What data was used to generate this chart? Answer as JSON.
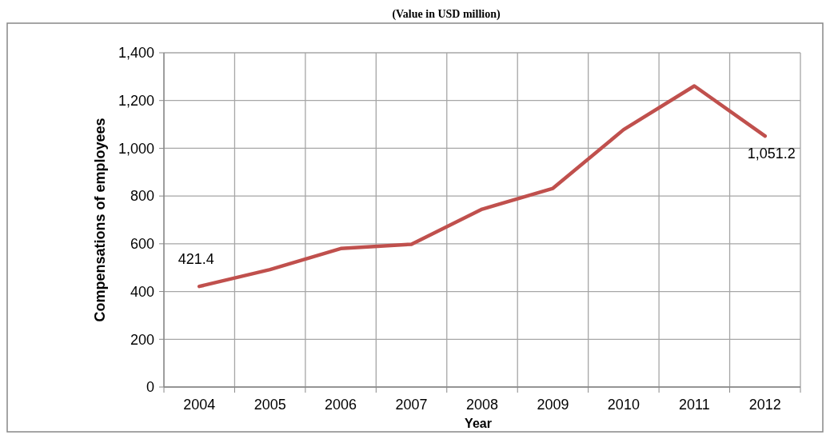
{
  "chart_data": {
    "type": "line",
    "title": "(Value in USD million)",
    "xlabel": "Year",
    "ylabel": "Compensations of employees",
    "categories": [
      "2004",
      "2005",
      "2006",
      "2007",
      "2008",
      "2009",
      "2010",
      "2011",
      "2012"
    ],
    "values": [
      421.4,
      492,
      580,
      598,
      745,
      832,
      1078,
      1261,
      1051.2
    ],
    "value_labels": [
      "421.4",
      null,
      null,
      null,
      null,
      null,
      null,
      null,
      "1,051.2"
    ],
    "color": "#c0504d",
    "ylim": [
      0,
      1400
    ],
    "yticks": [
      {
        "value": 0,
        "label": "0"
      },
      {
        "value": 200,
        "label": "200"
      },
      {
        "value": 400,
        "label": "400"
      },
      {
        "value": 600,
        "label": "600"
      },
      {
        "value": 800,
        "label": "800"
      },
      {
        "value": 1000,
        "label": "1,000"
      },
      {
        "value": 1200,
        "label": "1,200"
      },
      {
        "value": 1400,
        "label": "1,400"
      }
    ],
    "grid": true,
    "marker": "none",
    "line_style": "solid"
  }
}
